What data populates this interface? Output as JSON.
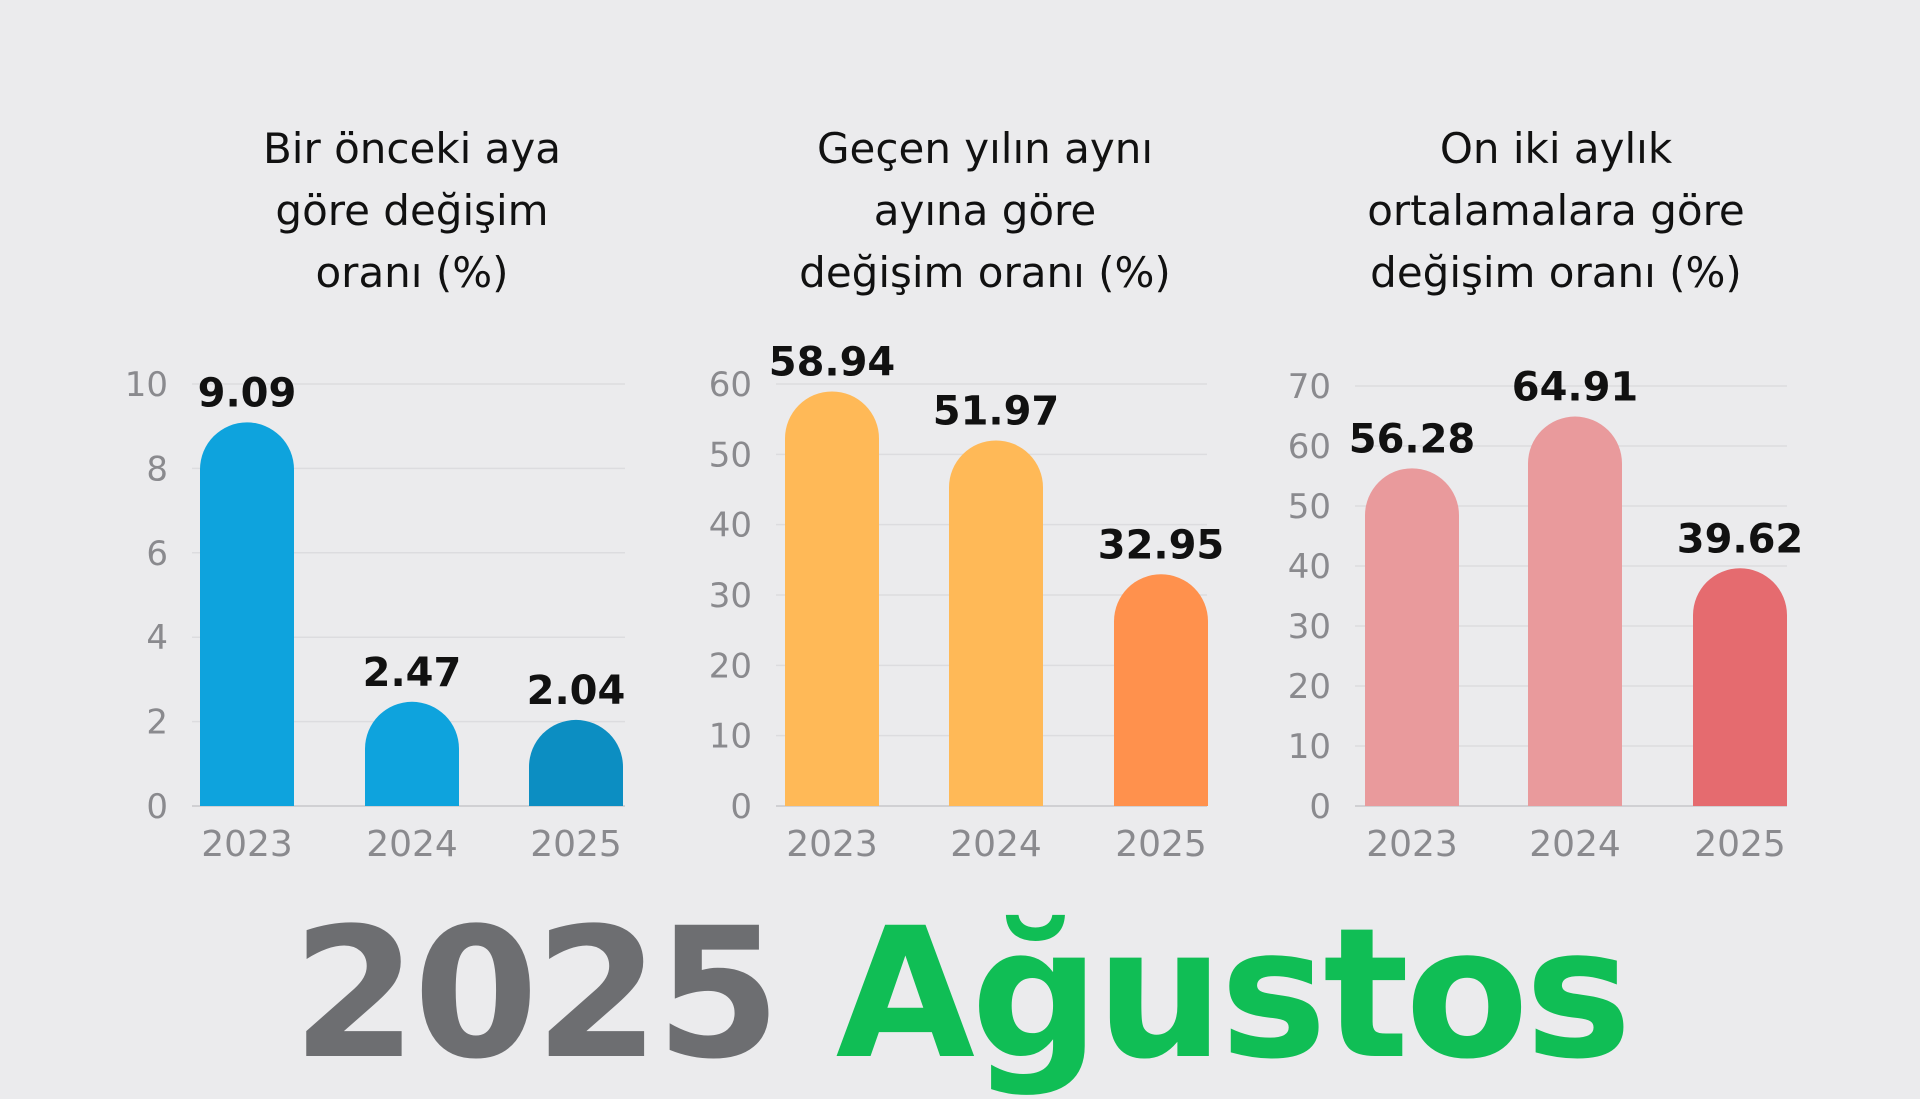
{
  "chart_data": [
    {
      "type": "bar",
      "title": "Bir önceki aya\ngöre değişim\noranı (%)",
      "categories": [
        "2023",
        "2024",
        "2025"
      ],
      "values": [
        9.09,
        2.47,
        2.04
      ],
      "value_labels": [
        "9.09",
        "2.47",
        "2.04"
      ],
      "ylim": [
        0,
        10
      ],
      "yticks": [
        0,
        2,
        4,
        6,
        8,
        10
      ],
      "colors": [
        "#0ea3dd",
        "#0ea3dd",
        "#0c8ec2"
      ],
      "grid": true
    },
    {
      "type": "bar",
      "title": "Geçen yılın aynı\nayına göre\ndeğişim oranı (%)",
      "categories": [
        "2023",
        "2024",
        "2025"
      ],
      "values": [
        58.94,
        51.97,
        32.95
      ],
      "value_labels": [
        "58.94",
        "51.97",
        "32.95"
      ],
      "ylim": [
        0,
        60
      ],
      "yticks": [
        0,
        10,
        20,
        30,
        40,
        50,
        60
      ],
      "colors": [
        "#ffb957",
        "#ffb957",
        "#ff914d"
      ],
      "grid": true
    },
    {
      "type": "bar",
      "title": "On iki aylık\nortalamalara göre\ndeğişim oranı (%)",
      "categories": [
        "2023",
        "2024",
        "2025"
      ],
      "values": [
        56.28,
        64.91,
        39.62
      ],
      "value_labels": [
        "56.28",
        "64.91",
        "39.62"
      ],
      "ylim": [
        0,
        70
      ],
      "yticks": [
        0,
        10,
        20,
        30,
        40,
        50,
        60,
        70
      ],
      "colors": [
        "#e99a9c",
        "#e99a9c",
        "#e56b6f"
      ],
      "grid": true
    }
  ],
  "footer": {
    "year": "2025",
    "month": "Ağustos"
  }
}
